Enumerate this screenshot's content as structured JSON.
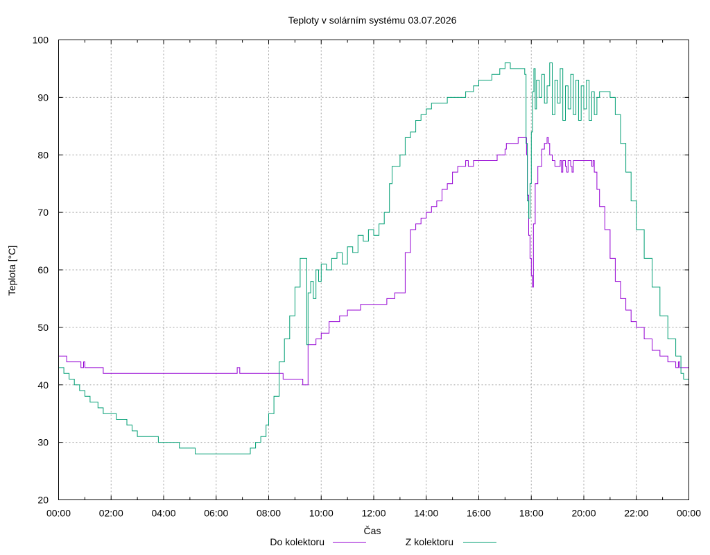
{
  "chart_data": {
    "type": "line",
    "title": "Teploty v solárním systému 03.07.2026",
    "xlabel": "Čas",
    "ylabel": "Teplota [°C]",
    "ylim": [
      20,
      100
    ],
    "y_ticks": [
      "20",
      "30",
      "40",
      "50",
      "60",
      "70",
      "80",
      "90",
      "100"
    ],
    "x_range_hours": [
      0,
      24
    ],
    "x_ticks": [
      "00:00",
      "02:00",
      "04:00",
      "06:00",
      "08:00",
      "10:00",
      "12:00",
      "14:00",
      "16:00",
      "18:00",
      "20:00",
      "22:00",
      "00:00"
    ],
    "grid": true,
    "legend_position": "bottom",
    "series": [
      {
        "name": "Do kolektoru",
        "color": "#9400d3",
        "x": [
          0.0,
          0.3,
          0.31,
          0.8,
          0.85,
          0.95,
          1.0,
          1.6,
          1.7,
          2.0,
          6.7,
          6.8,
          6.9,
          7.0,
          8.5,
          8.55,
          8.9,
          9.3,
          9.4,
          9.5,
          9.8,
          10.0,
          10.3,
          10.7,
          11.0,
          11.5,
          12.0,
          12.5,
          12.6,
          12.8,
          13.0,
          13.2,
          13.4,
          13.6,
          13.8,
          14.0,
          14.2,
          14.4,
          14.6,
          14.8,
          15.0,
          15.2,
          15.4,
          15.5,
          15.6,
          15.8,
          16.0,
          16.2,
          16.5,
          16.7,
          17.0,
          17.05,
          17.1,
          17.5,
          17.8,
          17.82,
          17.85,
          17.9,
          17.95,
          18.0,
          18.05,
          18.08,
          18.15,
          18.25,
          18.4,
          18.5,
          18.6,
          18.65,
          18.7,
          18.8,
          18.9,
          19.0,
          19.1,
          19.15,
          19.2,
          19.3,
          19.35,
          19.4,
          19.5,
          19.55,
          19.6,
          19.7,
          19.8,
          20.0,
          20.3,
          20.35,
          20.4,
          20.5,
          20.6,
          20.8,
          21.0,
          21.2,
          21.4,
          21.6,
          21.8,
          22.0,
          22.3,
          22.6,
          22.9,
          23.2,
          23.5,
          23.6,
          23.65,
          23.7,
          24.0
        ],
        "y": [
          45,
          45,
          44,
          44,
          43,
          44,
          43,
          43,
          42,
          42,
          42,
          43,
          42,
          42,
          42,
          41,
          41,
          40,
          40,
          47,
          48,
          49,
          51,
          52,
          53,
          54,
          54,
          55,
          55,
          56,
          56,
          63,
          67,
          68,
          69,
          70,
          71,
          72,
          74,
          75,
          77,
          78,
          78,
          79,
          78,
          79,
          79,
          79,
          79,
          80,
          81,
          82,
          82,
          83,
          83,
          80,
          73,
          66,
          62,
          59,
          57,
          68,
          75,
          78,
          81,
          82,
          83,
          82,
          80,
          79,
          78,
          78,
          79,
          77,
          79,
          78,
          77,
          79,
          78,
          77,
          79,
          79,
          79,
          79,
          78,
          79,
          77,
          74,
          71,
          67,
          62,
          58,
          55,
          53,
          51,
          50,
          48,
          46,
          45,
          44,
          43,
          44,
          43,
          43,
          42
        ]
      },
      {
        "name": "Z kolektoru",
        "color": "#009e73",
        "x": [
          0.0,
          0.2,
          0.4,
          0.6,
          0.8,
          1.0,
          1.2,
          1.5,
          1.7,
          2.0,
          2.2,
          2.4,
          2.6,
          2.8,
          3.0,
          3.4,
          3.8,
          4.0,
          4.1,
          4.6,
          5.0,
          5.2,
          5.5,
          5.8,
          6.2,
          6.6,
          7.0,
          7.3,
          7.5,
          7.7,
          7.9,
          8.0,
          8.2,
          8.4,
          8.6,
          8.8,
          9.0,
          9.2,
          9.35,
          9.45,
          9.5,
          9.6,
          9.7,
          9.8,
          9.9,
          10.0,
          10.2,
          10.4,
          10.6,
          10.8,
          11.0,
          11.2,
          11.4,
          11.6,
          11.8,
          12.0,
          12.2,
          12.4,
          12.6,
          12.7,
          12.8,
          13.0,
          13.2,
          13.4,
          13.6,
          13.8,
          14.0,
          14.2,
          14.4,
          14.6,
          14.8,
          15.0,
          15.2,
          15.5,
          15.8,
          16.0,
          16.2,
          16.5,
          16.8,
          17.0,
          17.2,
          17.4,
          17.6,
          17.75,
          17.8,
          17.85,
          17.9,
          17.95,
          18.0,
          18.05,
          18.1,
          18.15,
          18.2,
          18.3,
          18.4,
          18.5,
          18.6,
          18.7,
          18.8,
          18.9,
          19.0,
          19.1,
          19.2,
          19.3,
          19.4,
          19.5,
          19.6,
          19.7,
          19.8,
          19.9,
          20.0,
          20.1,
          20.2,
          20.3,
          20.4,
          20.5,
          20.6,
          20.8,
          21.0,
          21.2,
          21.4,
          21.6,
          21.8,
          22.0,
          22.3,
          22.6,
          22.9,
          23.2,
          23.5,
          23.7,
          23.8,
          24.0
        ],
        "y": [
          43,
          42,
          41,
          40,
          39,
          38,
          37,
          36,
          35,
          35,
          34,
          34,
          33,
          32,
          31,
          31,
          30,
          30,
          30,
          29,
          29,
          28,
          28,
          28,
          28,
          28,
          28,
          29,
          30,
          31,
          33,
          35,
          38,
          44,
          48,
          52,
          57,
          62,
          62,
          47,
          56,
          58,
          55,
          60,
          58,
          61,
          60,
          62,
          63,
          61,
          64,
          63,
          66,
          65,
          67,
          66,
          68,
          70,
          75,
          78,
          78,
          80,
          83,
          84,
          86,
          87,
          88,
          89,
          89,
          89,
          90,
          90,
          90,
          91,
          92,
          93,
          93,
          94,
          95,
          96,
          95,
          95,
          95,
          94,
          82,
          72,
          69,
          75,
          84,
          91,
          95,
          88,
          93,
          90,
          94,
          89,
          92,
          96,
          87,
          93,
          89,
          95,
          86,
          92,
          88,
          94,
          87,
          93,
          86,
          92,
          88,
          93,
          86,
          91,
          87,
          90,
          91,
          91,
          90,
          87,
          82,
          77,
          72,
          67,
          62,
          57,
          52,
          48,
          45,
          42,
          41,
          40
        ]
      }
    ]
  }
}
